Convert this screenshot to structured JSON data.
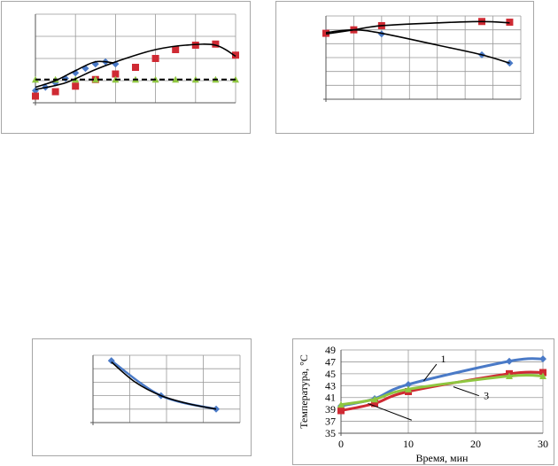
{
  "colors": {
    "blue": "#4a7ac7",
    "red": "#cf2a33",
    "green": "#8fc640",
    "black": "#000000",
    "grid": "#999999",
    "frame": "#a6a6a6"
  },
  "chart_data": [
    {
      "type": "line",
      "panel": "top-left",
      "title": "",
      "xlabel": "",
      "ylabel": "",
      "xlim": [
        0,
        10
      ],
      "ylim": [
        0,
        4
      ],
      "grid": true,
      "tick_labels": false,
      "series": [
        {
          "color": "blue",
          "marker": "diamond",
          "curve": false,
          "x": [
            0,
            0.5,
            1,
            1.5,
            2,
            2.5,
            3,
            3.5,
            4
          ],
          "y": [
            0.55,
            0.7,
            0.9,
            1.1,
            1.35,
            1.55,
            1.75,
            1.85,
            1.75
          ]
        },
        {
          "color": "red",
          "marker": "square",
          "curve": false,
          "x": [
            0,
            1,
            2,
            3,
            4,
            5,
            6,
            7,
            8,
            9,
            10
          ],
          "y": [
            0.3,
            0.5,
            0.75,
            1.05,
            1.3,
            1.6,
            2.0,
            2.4,
            2.6,
            2.65,
            2.15
          ]
        },
        {
          "color": "green",
          "marker": "triangle",
          "curve": false,
          "x": [
            0,
            1,
            2,
            3,
            4,
            5,
            6,
            7,
            8,
            9,
            10
          ],
          "y": [
            1.05,
            1.05,
            1.05,
            1.05,
            1.05,
            1.05,
            1.05,
            1.05,
            1.05,
            1.05,
            1.05
          ]
        },
        {
          "color": "black",
          "marker": "none",
          "curve": true,
          "dashed": false,
          "x": [
            0,
            1.5,
            3,
            4.5,
            6,
            7.5,
            9,
            10
          ],
          "y": [
            0.6,
            0.9,
            1.5,
            2.0,
            2.4,
            2.6,
            2.6,
            2.1
          ]
        },
        {
          "color": "black",
          "marker": "none",
          "curve": true,
          "dashed": false,
          "x": [
            0,
            1,
            2,
            3,
            3.9
          ],
          "y": [
            0.7,
            1.0,
            1.45,
            1.85,
            1.8
          ]
        },
        {
          "color": "black",
          "marker": "none",
          "curve": false,
          "dashed": true,
          "x": [
            0,
            10
          ],
          "y": [
            1.05,
            1.05
          ]
        }
      ]
    },
    {
      "type": "line",
      "panel": "top-right",
      "title": "",
      "xlabel": "",
      "ylabel": "",
      "xlim": [
        0,
        35
      ],
      "ylim": [
        0,
        6
      ],
      "grid": true,
      "tick_labels": false,
      "series": [
        {
          "color": "blue",
          "marker": "diamond",
          "curve": false,
          "x": [
            0,
            5,
            10,
            28,
            33
          ],
          "y": [
            4.8,
            5.0,
            4.7,
            3.2,
            2.6
          ]
        },
        {
          "color": "red",
          "marker": "square",
          "curve": false,
          "x": [
            0,
            5,
            10,
            28,
            33
          ],
          "y": [
            4.75,
            5.0,
            5.3,
            5.6,
            5.55
          ]
        },
        {
          "color": "black",
          "marker": "none",
          "curve": true,
          "x": [
            0,
            5,
            10,
            20,
            28,
            33
          ],
          "y": [
            4.8,
            5.0,
            4.75,
            3.9,
            3.2,
            2.6
          ]
        },
        {
          "color": "black",
          "marker": "none",
          "curve": true,
          "x": [
            0,
            5,
            10,
            20,
            28,
            33
          ],
          "y": [
            4.7,
            5.0,
            5.3,
            5.5,
            5.6,
            5.5
          ]
        }
      ]
    },
    {
      "type": "line",
      "panel": "bottom-left",
      "title": "",
      "xlabel": "",
      "ylabel": "",
      "xlim": [
        0,
        8
      ],
      "ylim": [
        0,
        5
      ],
      "grid": true,
      "tick_labels": false,
      "series": [
        {
          "color": "blue",
          "marker": "diamond",
          "curve": true,
          "x": [
            1,
            3.7,
            6.7
          ],
          "y": [
            4.6,
            2.0,
            1.0
          ]
        },
        {
          "color": "black",
          "marker": "none",
          "curve": true,
          "x": [
            1,
            2.3,
            3.7,
            5.2,
            6.7
          ],
          "y": [
            4.5,
            3.0,
            2.0,
            1.4,
            1.0
          ]
        }
      ]
    },
    {
      "type": "line",
      "panel": "bottom-right",
      "title": "",
      "xlabel": "Время, мин",
      "ylabel": "Температура, °С",
      "xlim": [
        0,
        30
      ],
      "ylim": [
        35,
        49
      ],
      "xticks": [
        0,
        10,
        20,
        30
      ],
      "yticks": [
        35,
        37,
        39,
        41,
        43,
        45,
        47,
        49
      ],
      "grid": true,
      "tick_labels": true,
      "annotations": [
        "1",
        "3"
      ],
      "series": [
        {
          "color": "blue",
          "marker": "diamond",
          "curve": true,
          "x": [
            0,
            5,
            10,
            25,
            30
          ],
          "y": [
            39.6,
            40.8,
            43.2,
            47.1,
            47.5
          ]
        },
        {
          "color": "red",
          "marker": "square",
          "curve": true,
          "x": [
            0,
            5,
            10,
            25,
            30
          ],
          "y": [
            38.8,
            40.0,
            42.0,
            45.0,
            45.2
          ]
        },
        {
          "color": "green",
          "marker": "triangle",
          "curve": true,
          "x": [
            0,
            5,
            10,
            25,
            30
          ],
          "y": [
            39.8,
            40.7,
            42.4,
            44.6,
            44.6
          ]
        }
      ]
    }
  ]
}
